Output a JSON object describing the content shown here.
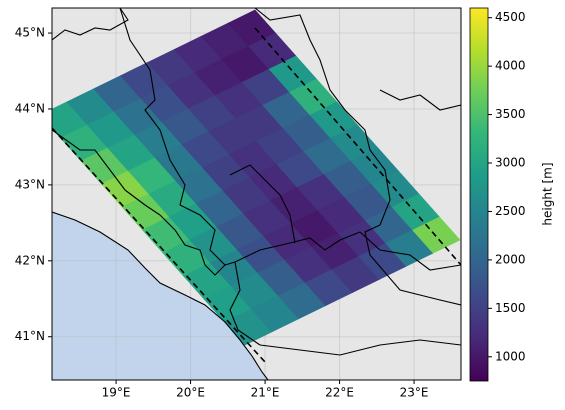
{
  "chart_data": {
    "type": "heatmap",
    "colormap": "viridis",
    "xlim": [
      18.14,
      23.63
    ],
    "ylim": [
      40.43,
      45.33
    ],
    "xticks": [
      {
        "value": 19,
        "label": "19°E"
      },
      {
        "value": 20,
        "label": "20°E"
      },
      {
        "value": 21,
        "label": "21°E"
      },
      {
        "value": 22,
        "label": "22°E"
      },
      {
        "value": 23,
        "label": "23°E"
      }
    ],
    "yticks": [
      {
        "value": 41,
        "label": "41°N"
      },
      {
        "value": 42,
        "label": "42°N"
      },
      {
        "value": 43,
        "label": "43°N"
      },
      {
        "value": 44,
        "label": "44°N"
      },
      {
        "value": 45,
        "label": "45°N"
      }
    ],
    "grid": true,
    "values": [
      [
        3000,
        2600,
        2000,
        1600,
        1400,
        1200,
        1100,
        1000
      ],
      [
        3200,
        2800,
        2200,
        1700,
        1300,
        1100,
        1000,
        1200
      ],
      [
        3600,
        3000,
        2400,
        1800,
        1500,
        1300,
        1500,
        2800
      ],
      [
        3900,
        3300,
        2300,
        1600,
        1400,
        1400,
        2000,
        3200
      ],
      [
        3700,
        3100,
        2200,
        1500,
        1300,
        1500,
        1900,
        2800
      ],
      [
        3400,
        2900,
        2000,
        1400,
        1200,
        1600,
        2100,
        2600
      ],
      [
        3200,
        2700,
        1800,
        1300,
        1100,
        1300,
        1900,
        2500
      ],
      [
        3000,
        2500,
        1700,
        1200,
        1000,
        1200,
        1800,
        2600
      ],
      [
        2900,
        2600,
        1900,
        1300,
        1100,
        1300,
        2000,
        3000
      ],
      [
        2700,
        2500,
        2100,
        1600,
        1400,
        1600,
        2400,
        3800
      ]
    ],
    "colorbar": {
      "label": "height [m]",
      "lim": [
        750,
        4600
      ],
      "ticks": [
        1000,
        1500,
        2000,
        2500,
        3000,
        3500,
        4000,
        4500
      ]
    }
  }
}
